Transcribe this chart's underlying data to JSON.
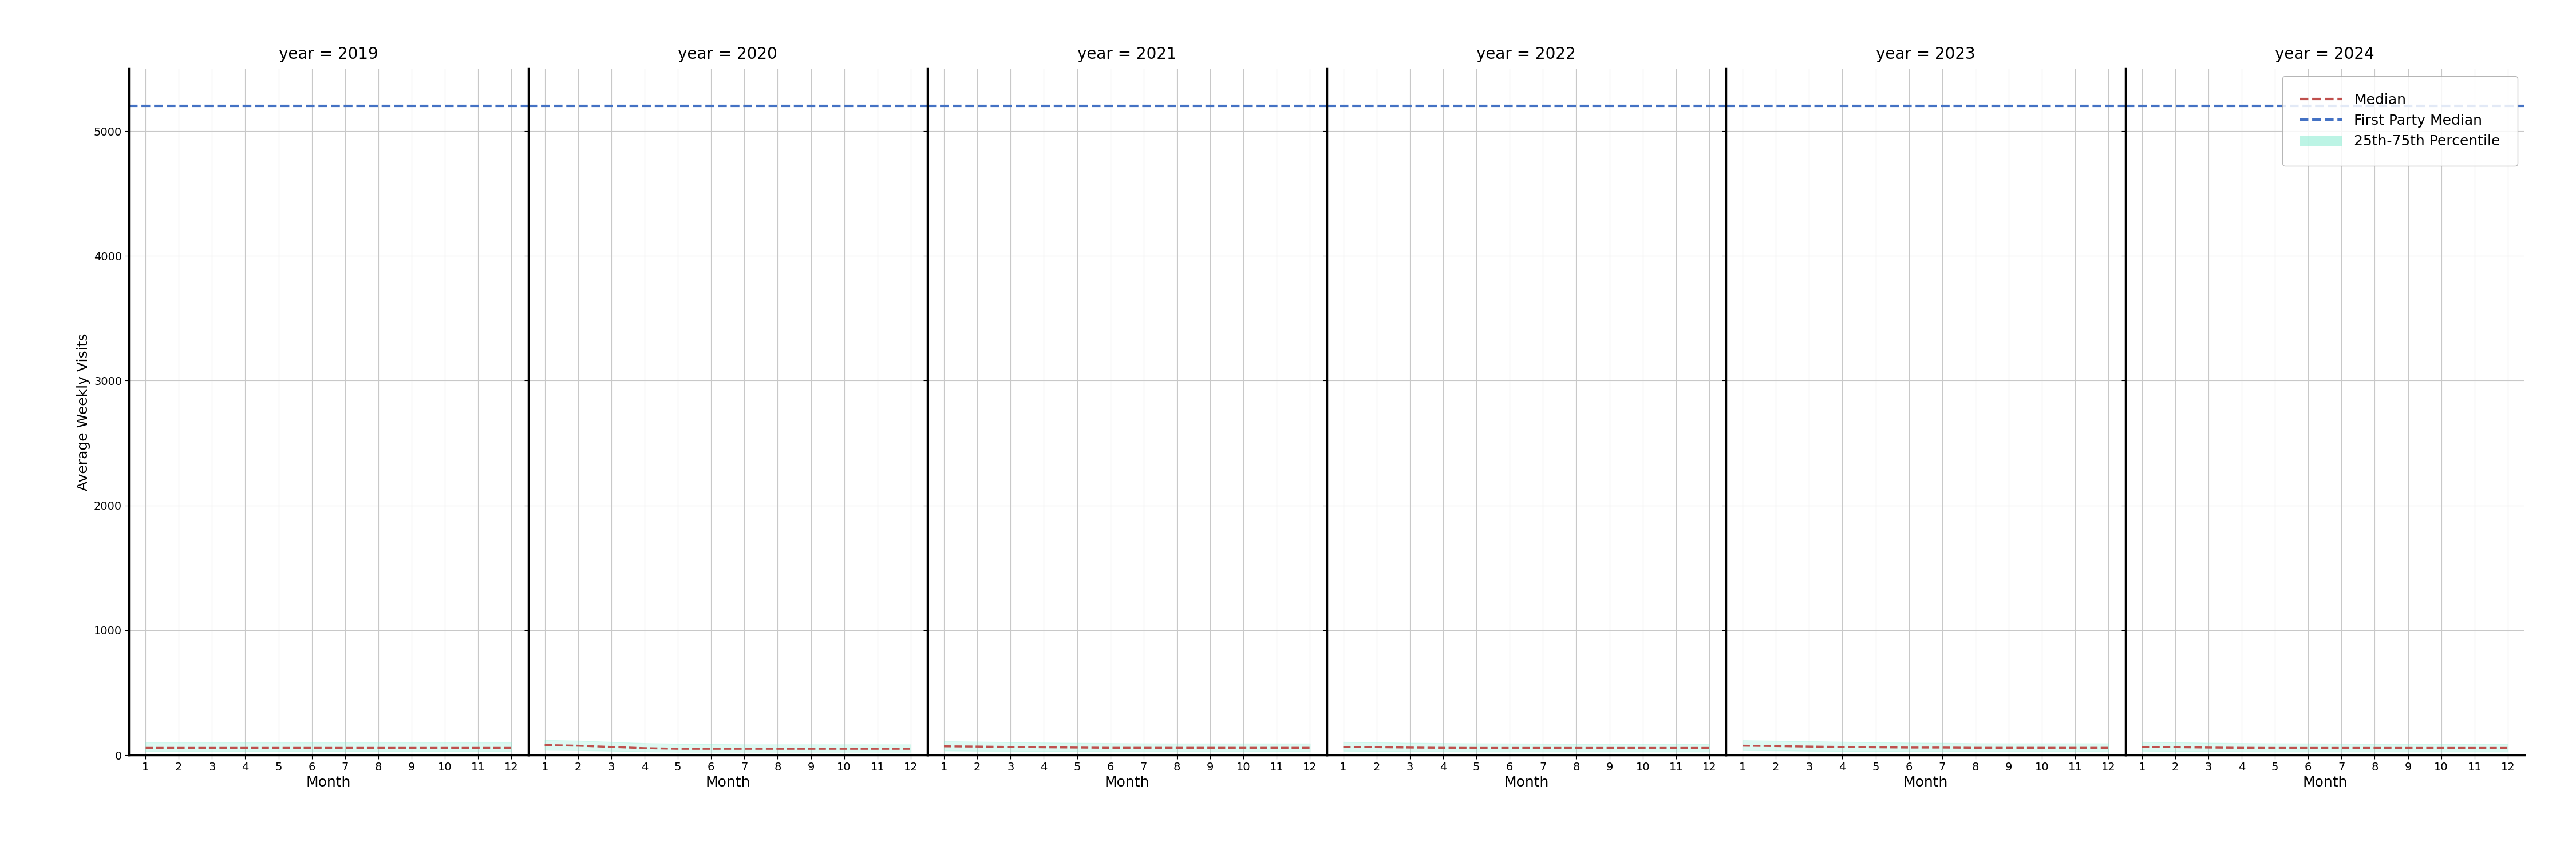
{
  "years": [
    2019,
    2020,
    2021,
    2022,
    2023,
    2024
  ],
  "months": [
    1,
    2,
    3,
    4,
    5,
    6,
    7,
    8,
    9,
    10,
    11,
    12
  ],
  "blue_median": 5200,
  "red_median": {
    "2019": [
      60,
      60,
      60,
      60,
      60,
      60,
      60,
      60,
      60,
      60,
      60,
      60
    ],
    "2020": [
      80,
      75,
      65,
      55,
      50,
      50,
      50,
      50,
      50,
      50,
      50,
      50
    ],
    "2021": [
      70,
      68,
      65,
      62,
      60,
      58,
      58,
      58,
      58,
      58,
      58,
      58
    ],
    "2022": [
      65,
      63,
      60,
      58,
      57,
      57,
      57,
      57,
      57,
      57,
      57,
      57
    ],
    "2023": [
      75,
      72,
      68,
      65,
      62,
      60,
      60,
      58,
      58,
      58,
      58,
      58
    ],
    "2024": [
      65,
      63,
      60,
      58,
      57,
      57,
      57,
      57,
      57,
      57,
      57,
      57
    ]
  },
  "percentile_25": {
    "2019": [
      30,
      30,
      30,
      30,
      30,
      30,
      30,
      30,
      30,
      30,
      30,
      30
    ],
    "2020": [
      40,
      38,
      33,
      28,
      25,
      25,
      25,
      25,
      25,
      25,
      25,
      25
    ],
    "2021": [
      35,
      33,
      32,
      30,
      29,
      28,
      28,
      28,
      28,
      28,
      28,
      28
    ],
    "2022": [
      33,
      31,
      29,
      28,
      27,
      27,
      27,
      27,
      27,
      27,
      27,
      27
    ],
    "2023": [
      38,
      36,
      33,
      31,
      30,
      29,
      29,
      28,
      28,
      28,
      28,
      28
    ],
    "2024": [
      33,
      31,
      29,
      28,
      27,
      27,
      27,
      27,
      27,
      27,
      27,
      27
    ]
  },
  "percentile_75": {
    "2019": [
      100,
      100,
      100,
      100,
      100,
      100,
      100,
      100,
      100,
      100,
      100,
      100
    ],
    "2020": [
      120,
      115,
      105,
      95,
      90,
      88,
      85,
      85,
      85,
      85,
      85,
      85
    ],
    "2021": [
      110,
      107,
      103,
      100,
      97,
      95,
      93,
      92,
      92,
      92,
      92,
      92
    ],
    "2022": [
      105,
      102,
      98,
      95,
      93,
      92,
      91,
      90,
      90,
      90,
      90,
      90
    ],
    "2023": [
      118,
      114,
      110,
      106,
      102,
      99,
      97,
      94,
      93,
      93,
      93,
      93
    ],
    "2024": [
      105,
      102,
      98,
      95,
      93,
      92,
      91,
      90,
      90,
      90,
      90,
      90
    ]
  },
  "ylim": [
    0,
    5500
  ],
  "yticks": [
    0,
    1000,
    2000,
    3000,
    4000,
    5000
  ],
  "ylabel": "Average Weekly Visits",
  "xlabel": "Month",
  "blue_color": "#4472C4",
  "red_color": "#C0504D",
  "fill_color": "#90EED4",
  "fill_alpha": 0.3,
  "grid_color": "#C8C8C8",
  "spine_color": "#000000",
  "bg_color": "#FFFFFF",
  "title_prefix": "year = ",
  "title_fontsize": 20,
  "label_fontsize": 18,
  "tick_fontsize": 14,
  "legend_fontsize": 18
}
